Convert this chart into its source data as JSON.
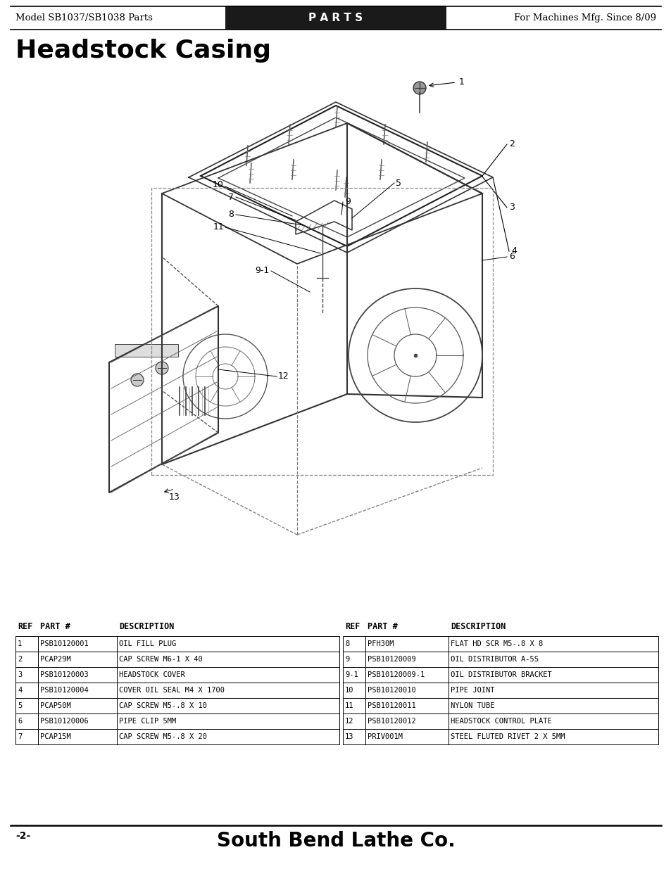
{
  "page_bg": "#ffffff",
  "header_bg": "#1a1a1a",
  "header_left": "Model SB1037/SB1038 Parts",
  "header_center": "P A R T S",
  "header_right": "For Machines Mfg. Since 8/09",
  "title": "Headstock Casing",
  "footer_page": "-2-",
  "footer_brand": "South Bend Lathe Co.",
  "table_left": [
    {
      "ref": "1",
      "part": "PSB10120001",
      "desc": "OIL FILL PLUG"
    },
    {
      "ref": "2",
      "part": "PCAP29M",
      "desc": "CAP SCREW M6-1 X 40"
    },
    {
      "ref": "3",
      "part": "PSB10120003",
      "desc": "HEADSTOCK COVER"
    },
    {
      "ref": "4",
      "part": "PSB10120004",
      "desc": "COVER OIL SEAL M4 X 1700"
    },
    {
      "ref": "5",
      "part": "PCAP50M",
      "desc": "CAP SCREW M5-.8 X 10"
    },
    {
      "ref": "6",
      "part": "PSB10120006",
      "desc": "PIPE CLIP 5MM"
    },
    {
      "ref": "7",
      "part": "PCAP15M",
      "desc": "CAP SCREW M5-.8 X 20"
    }
  ],
  "table_right": [
    {
      "ref": "8",
      "part": "PFH30M",
      "desc": "FLAT HD SCR M5-.8 X 8"
    },
    {
      "ref": "9",
      "part": "PSB10120009",
      "desc": "OIL DISTRIBUTOR A-5S"
    },
    {
      "ref": "9-1",
      "part": "PSB10120009-1",
      "desc": "OIL DISTRIBUTOR BRACKET"
    },
    {
      "ref": "10",
      "part": "PSB10120010",
      "desc": "PIPE JOINT"
    },
    {
      "ref": "11",
      "part": "PSB10120011",
      "desc": "NYLON TUBE"
    },
    {
      "ref": "12",
      "part": "PSB10120012",
      "desc": "HEADSTOCK CONTROL PLATE"
    },
    {
      "ref": "13",
      "part": "PRIV001M",
      "desc": "STEEL FLUTED RIVET 2 X 5MM"
    }
  ],
  "col_header_ref": "REF",
  "col_header_part": "PART #",
  "col_header_desc": "DESCRIPTION"
}
